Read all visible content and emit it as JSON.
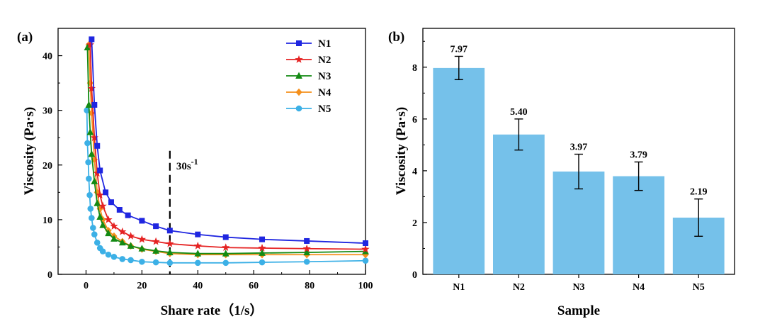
{
  "chart_data": [
    {
      "type": "line",
      "panel_label": "(a)",
      "xlabel": "Share rate（1/s）",
      "ylabel": "Viscosity (Pa·s)",
      "xlim": [
        -10,
        100
      ],
      "ylim": [
        0,
        45
      ],
      "xticks": [
        0,
        20,
        40,
        60,
        80,
        100
      ],
      "yticks": [
        0,
        10,
        20,
        30,
        40
      ],
      "annotation": {
        "text": "30s",
        "superscript": "-1",
        "x": 30
      },
      "legend_position": "top-right",
      "series": [
        {
          "name": "N1",
          "color": "#1f26e0",
          "marker": "square",
          "x": [
            2,
            3,
            4,
            5,
            7,
            9,
            12,
            15,
            20,
            25,
            30,
            40,
            50,
            63,
            79,
            100
          ],
          "y": [
            43,
            31,
            23.5,
            19,
            15,
            13.2,
            11.8,
            10.8,
            9.8,
            8.8,
            8.0,
            7.3,
            6.8,
            6.4,
            6.1,
            5.7
          ]
        },
        {
          "name": "N2",
          "color": "#e52222",
          "marker": "star",
          "x": [
            1.5,
            2,
            3,
            4,
            5,
            6,
            8,
            10,
            13,
            16,
            20,
            25,
            30,
            40,
            50,
            63,
            79,
            100
          ],
          "y": [
            42,
            34,
            25,
            18.5,
            14.5,
            12.5,
            10,
            8.8,
            7.8,
            7.0,
            6.4,
            6.0,
            5.6,
            5.2,
            4.9,
            4.8,
            4.7,
            4.6
          ]
        },
        {
          "name": "N3",
          "color": "#138a13",
          "marker": "triangle",
          "x": [
            0.5,
            1,
            1.5,
            2,
            3,
            4,
            5,
            6,
            8,
            10,
            13,
            16,
            20,
            25,
            30,
            40,
            50,
            63,
            79,
            100
          ],
          "y": [
            41.5,
            31,
            26,
            22,
            17,
            13,
            10.5,
            9.0,
            7.5,
            6.5,
            5.8,
            5.2,
            4.7,
            4.3,
            4.0,
            3.8,
            3.8,
            3.9,
            4.0,
            4.2
          ]
        },
        {
          "name": "N4",
          "color": "#f5901c",
          "marker": "diamond",
          "x": [
            1,
            1.5,
            2,
            3,
            4,
            5,
            6,
            8,
            10,
            13,
            16,
            20,
            25,
            30,
            40,
            50,
            63,
            79,
            100
          ],
          "y": [
            42,
            35,
            29.5,
            21,
            15,
            12,
            10,
            8.0,
            7.0,
            6.0,
            5.2,
            4.6,
            4.2,
            3.8,
            3.6,
            3.6,
            3.6,
            3.6,
            3.6
          ]
        },
        {
          "name": "N5",
          "color": "#3cb0e6",
          "marker": "circle",
          "x": [
            0.3,
            0.5,
            0.8,
            1,
            1.3,
            1.6,
            2,
            2.5,
            3,
            4,
            5,
            6,
            8,
            10,
            13,
            16,
            20,
            25,
            30,
            40,
            50,
            63,
            79,
            100
          ],
          "y": [
            30,
            24,
            20.5,
            17.5,
            14.5,
            12,
            10.3,
            8.5,
            7.3,
            5.8,
            4.8,
            4.2,
            3.6,
            3.2,
            2.8,
            2.6,
            2.3,
            2.2,
            2.1,
            2.1,
            2.1,
            2.2,
            2.3,
            2.5
          ]
        }
      ]
    },
    {
      "type": "bar",
      "panel_label": "(b)",
      "xlabel": "Sample",
      "ylabel": "Viscosity (Pa·s)",
      "ylim": [
        0,
        9.5
      ],
      "yticks": [
        0,
        2,
        4,
        6,
        8
      ],
      "categories": [
        "N1",
        "N2",
        "N3",
        "N4",
        "N5"
      ],
      "values": [
        7.97,
        5.4,
        3.97,
        3.79,
        2.19
      ],
      "value_labels": [
        "7.97",
        "5.40",
        "3.97",
        "3.79",
        "2.19"
      ],
      "errors": [
        0.45,
        0.6,
        0.67,
        0.55,
        0.72
      ],
      "bar_color": "#75c1ea"
    }
  ]
}
